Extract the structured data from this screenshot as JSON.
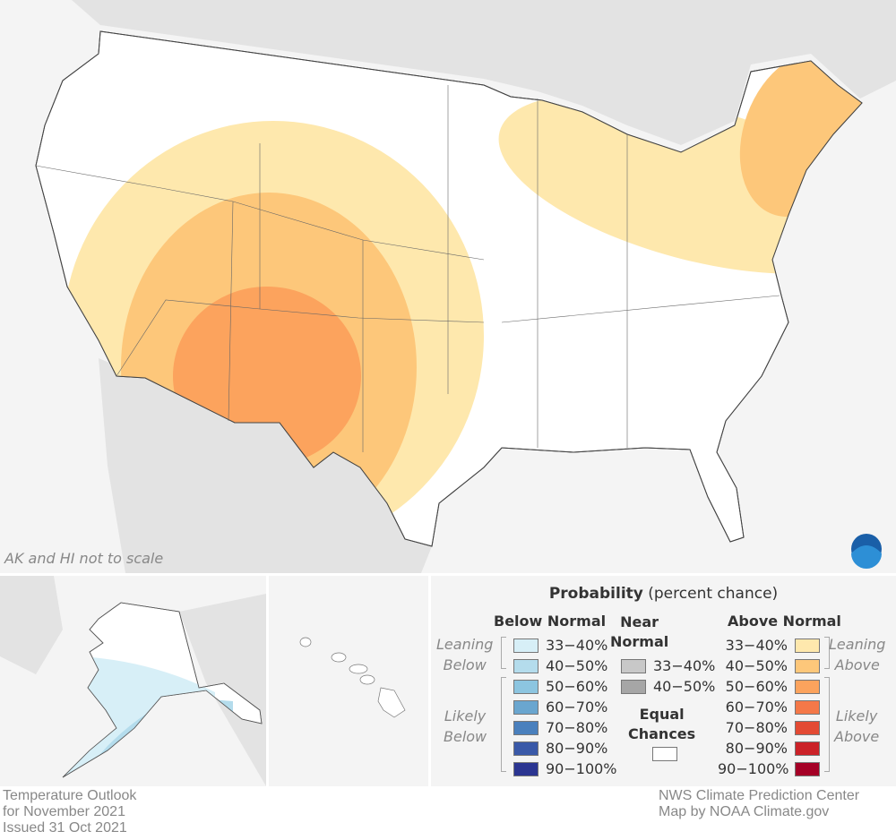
{
  "map": {
    "scale_note": "AK and HI not to scale",
    "logo_text": "NOAA"
  },
  "legend": {
    "title_bold": "Probability",
    "title_rest": " (percent chance)",
    "below": {
      "heading": "Below Normal",
      "leaning_label_1": "Leaning",
      "leaning_label_2": "Below",
      "likely_label_1": "Likely",
      "likely_label_2": "Below",
      "items": [
        {
          "label": "33−40%",
          "color": "#d7eff7"
        },
        {
          "label": "40−50%",
          "color": "#b4dcec"
        },
        {
          "label": "50−60%",
          "color": "#8cc5e0"
        },
        {
          "label": "60−70%",
          "color": "#6aa6cf"
        },
        {
          "label": "70−80%",
          "color": "#4a80bd"
        },
        {
          "label": "80−90%",
          "color": "#3a59a8"
        },
        {
          "label": "90−100%",
          "color": "#2b3591"
        }
      ]
    },
    "near": {
      "heading_1": "Near",
      "heading_2": "Normal",
      "items": [
        {
          "label": "33−40%",
          "color": "#c8c8c8"
        },
        {
          "label": "40−50%",
          "color": "#a6a6a6"
        }
      ]
    },
    "equal": {
      "heading_1": "Equal",
      "heading_2": "Chances",
      "color": "#ffffff"
    },
    "above": {
      "heading": "Above Normal",
      "leaning_label_1": "Leaning",
      "leaning_label_2": "Above",
      "likely_label_1": "Likely",
      "likely_label_2": "Above",
      "items": [
        {
          "label": "33−40%",
          "color": "#fee8ad"
        },
        {
          "label": "40−50%",
          "color": "#fdc77a"
        },
        {
          "label": "50−60%",
          "color": "#fca35d"
        },
        {
          "label": "60−70%",
          "color": "#f47848"
        },
        {
          "label": "70−80%",
          "color": "#e34a33"
        },
        {
          "label": "80−90%",
          "color": "#cb2228"
        },
        {
          "label": "90−100%",
          "color": "#a50026"
        }
      ]
    }
  },
  "footer": {
    "left_1": "Temperature Outlook",
    "left_2": "for November 2021",
    "left_3": "Issued 31 Oct 2021",
    "right_1": "NWS Climate Prediction Center",
    "right_2": "Map by NOAA Climate.gov"
  }
}
